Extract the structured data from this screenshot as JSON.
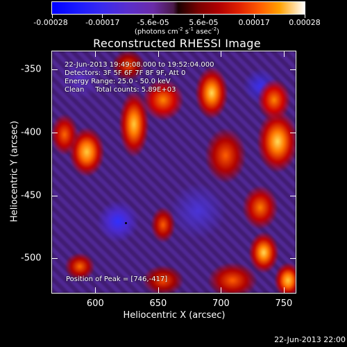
{
  "colorbar": {
    "tick_labels": [
      "-0.00028",
      "-0.00017",
      "-5.6e-05",
      "5.6e-05",
      "0.00017",
      "0.00028"
    ],
    "units_prefix": "(photons cm",
    "units_exp1": "-2",
    "units_mid1": " s",
    "units_exp2": "-1",
    "units_mid2": " asec",
    "units_exp3": "-2",
    "units_suffix": ")",
    "colors": [
      "#0000ff",
      "#5a2ecc",
      "#1a0000",
      "#b00000",
      "#ff5a00",
      "#ffffff"
    ]
  },
  "title": "Reconstructed RHESSI Image",
  "info": {
    "time_range": "22-Jun-2013 19:49:08.000 to 19:52:04.000",
    "detectors": "Detectors: 3F 5F 6F 7F 8F 9F, Att 0",
    "energy_range": "Energy Range: 25.0 - 50.0 keV",
    "algorithm_counts": "Clean     Total counts: 5.89E+03",
    "peak_position": "Position of Peak = [746,-417]"
  },
  "axes": {
    "x_title": "Heliocentric X (arcsec)",
    "y_title": "Heliocentric Y (arcsec)",
    "x_ticks": [
      "600",
      "650",
      "700",
      "750"
    ],
    "y_ticks": [
      "-350",
      "-400",
      "-450",
      "-500"
    ],
    "x_range": [
      565,
      760
    ],
    "y_range": [
      -528,
      -335
    ]
  },
  "footer_date": "22-Jun-2013 22:00"
}
